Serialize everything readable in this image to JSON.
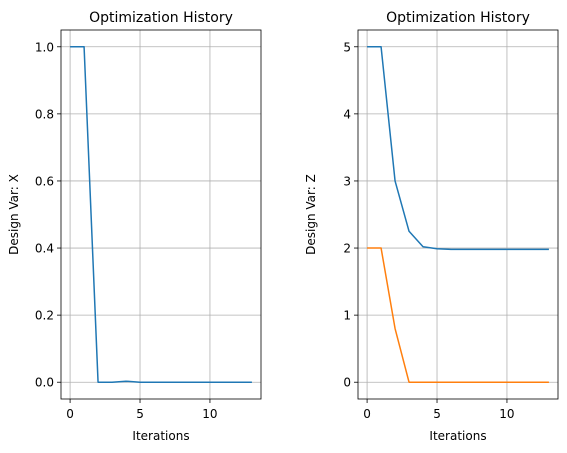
{
  "chart_data": [
    {
      "type": "line",
      "title": "Optimization History",
      "xlabel": "Iterations",
      "ylabel": "Design Var: X",
      "xlim": [
        -0.65,
        13.65
      ],
      "ylim": [
        -0.05,
        1.05
      ],
      "xticks": [
        0,
        5,
        10
      ],
      "yticks": [
        0.0,
        0.2,
        0.4,
        0.6,
        0.8,
        1.0
      ],
      "ytick_labels": [
        "0.0",
        "0.2",
        "0.4",
        "0.6",
        "0.8",
        "1.0"
      ],
      "grid": true,
      "series": [
        {
          "color": "#1f77b4",
          "x": [
            0,
            1,
            2,
            3,
            4,
            5,
            6,
            7,
            8,
            9,
            10,
            11,
            12,
            13
          ],
          "y": [
            1.0,
            1.0,
            0.0,
            0.0,
            0.003,
            0.0,
            0.0,
            0.0,
            0.0,
            0.0,
            0.0,
            0.0,
            0.0,
            0.0
          ]
        }
      ]
    },
    {
      "type": "line",
      "title": "Optimization History",
      "xlabel": "Iterations",
      "ylabel": "Design Var: Z",
      "xlim": [
        -0.65,
        13.65
      ],
      "ylim": [
        -0.25,
        5.25
      ],
      "xticks": [
        0,
        5,
        10
      ],
      "yticks": [
        0,
        1,
        2,
        3,
        4,
        5
      ],
      "ytick_labels": [
        "0",
        "1",
        "2",
        "3",
        "4",
        "5"
      ],
      "grid": true,
      "series": [
        {
          "color": "#1f77b4",
          "x": [
            0,
            1,
            2,
            3,
            4,
            5,
            6,
            7,
            8,
            9,
            10,
            11,
            12,
            13
          ],
          "y": [
            5.0,
            5.0,
            3.0,
            2.25,
            2.02,
            1.99,
            1.98,
            1.98,
            1.98,
            1.98,
            1.98,
            1.98,
            1.98,
            1.98
          ]
        },
        {
          "color": "#ff7f0e",
          "x": [
            0,
            1,
            2,
            3,
            4,
            5,
            6,
            7,
            8,
            9,
            10,
            11,
            12,
            13
          ],
          "y": [
            2.0,
            2.0,
            0.8,
            0.0,
            0.0,
            0.0,
            0.0,
            0.0,
            0.0,
            0.0,
            0.0,
            0.0,
            0.0,
            0.0
          ]
        }
      ]
    }
  ]
}
